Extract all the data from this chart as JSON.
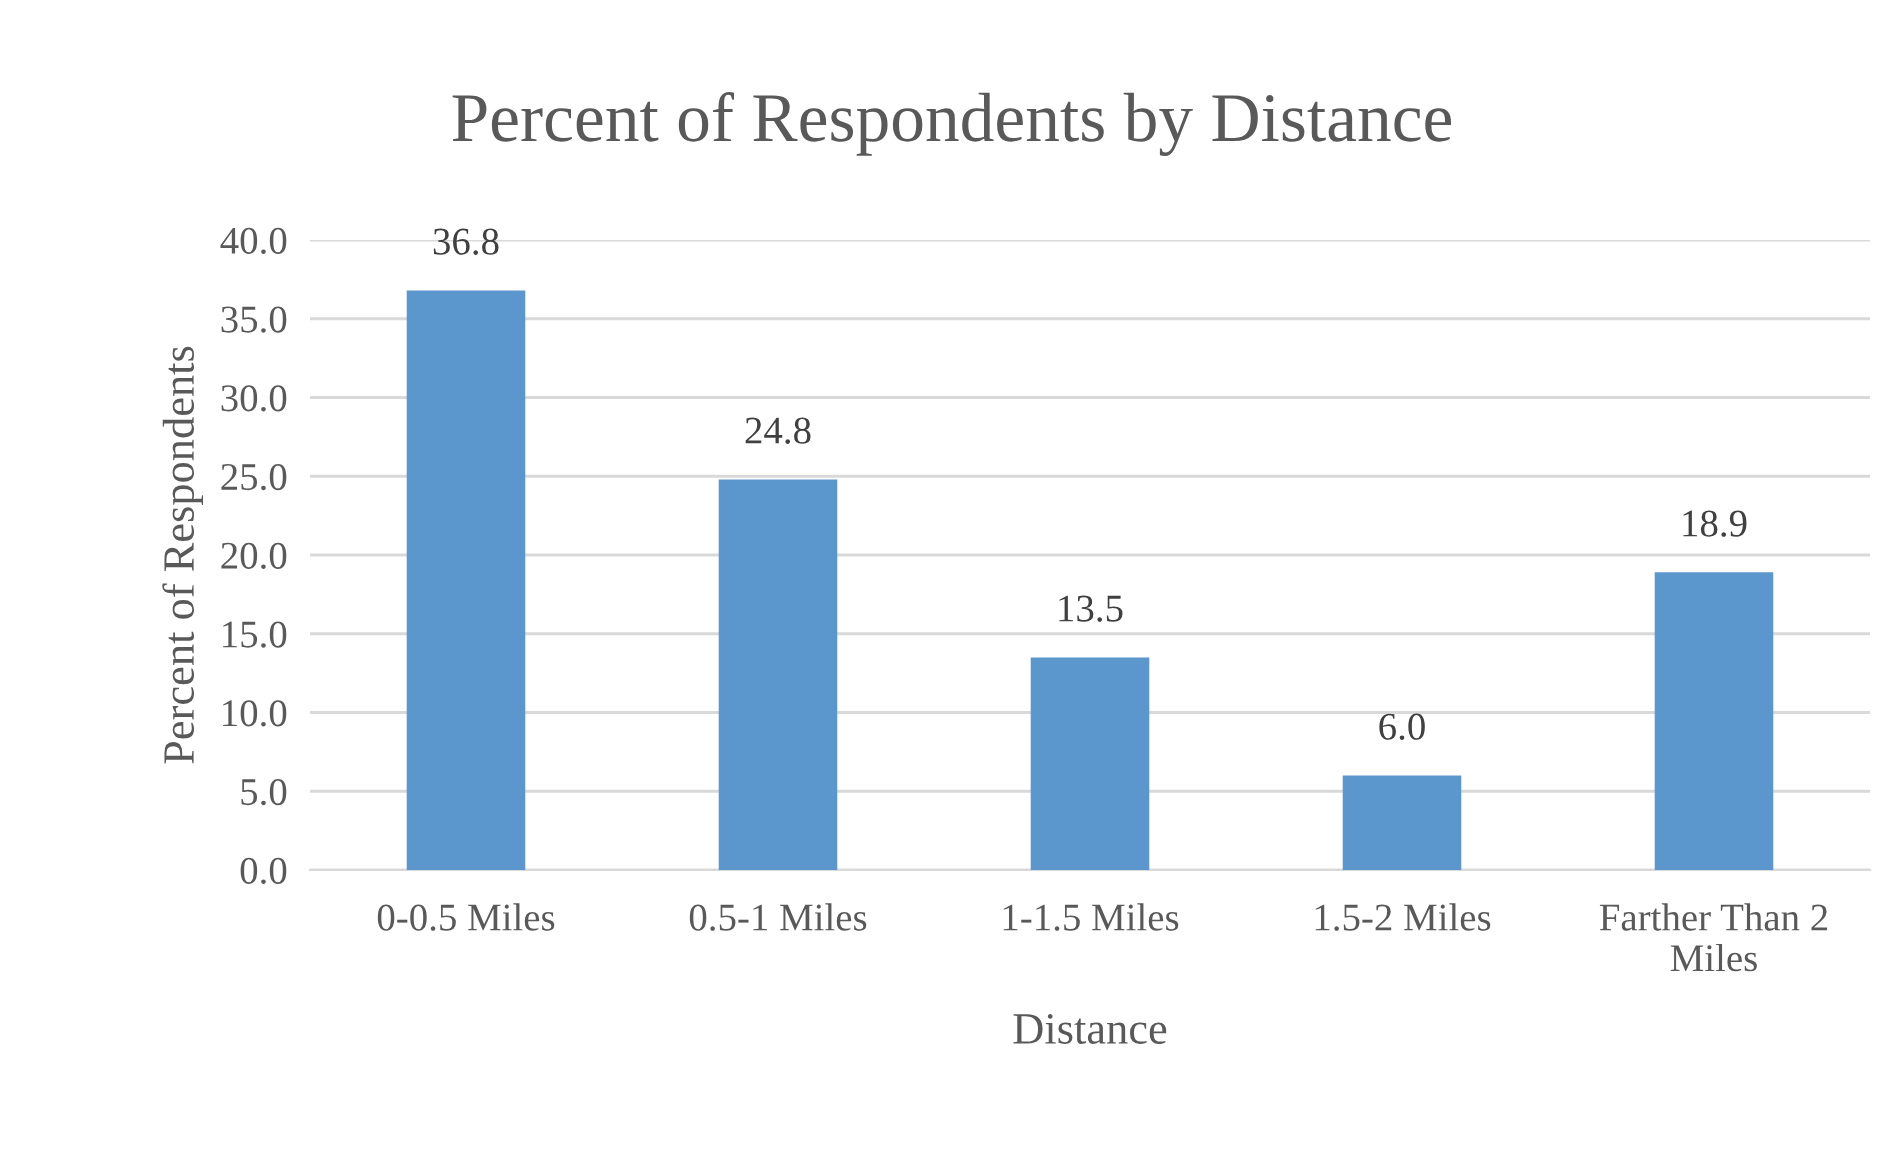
{
  "chart_data": {
    "type": "bar",
    "title": "Percent of Respondents by Distance",
    "xlabel": "Distance",
    "ylabel": "Percent of Respondents",
    "categories": [
      "0-0.5 Miles",
      "0.5-1 Miles",
      "1-1.5 Miles",
      "1.5-2 Miles",
      "Farther Than 2 Miles"
    ],
    "values": [
      36.8,
      24.8,
      13.5,
      6.0,
      18.9
    ],
    "value_labels": [
      "36.8",
      "24.8",
      "13.5",
      "6.0",
      "18.9"
    ],
    "color": "#5b96cc",
    "ylim": [
      0,
      40
    ],
    "yticks": [
      {
        "value": 0,
        "label": "0.0"
      },
      {
        "value": 5,
        "label": "5.0"
      },
      {
        "value": 10,
        "label": "10.0"
      },
      {
        "value": 15,
        "label": "15.0"
      },
      {
        "value": 20,
        "label": "20.0"
      },
      {
        "value": 25,
        "label": "25.0"
      },
      {
        "value": 30,
        "label": "30.0"
      },
      {
        "value": 35,
        "label": "35.0"
      },
      {
        "value": 40,
        "label": "40.0"
      }
    ],
    "grid": "y",
    "legend": false
  }
}
